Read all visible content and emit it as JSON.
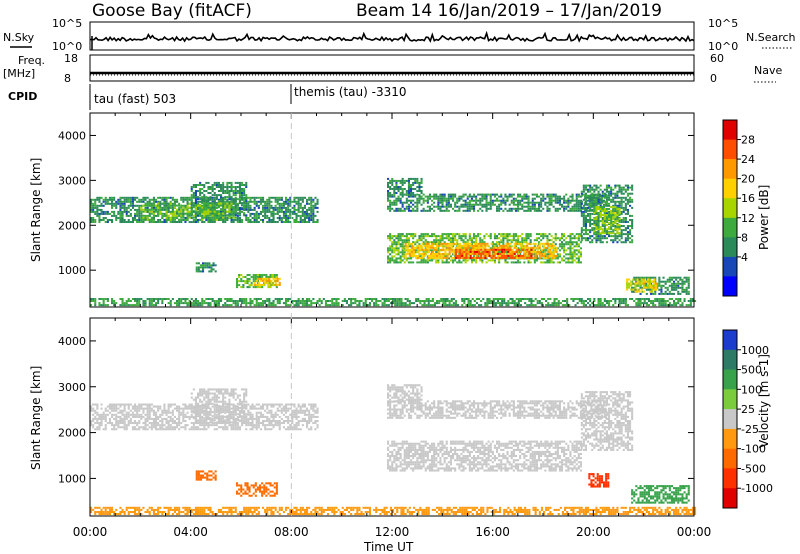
{
  "header": {
    "title_left": "Goose Bay (fitACF)",
    "title_right": "Beam 14  16/Jan/2019 – 17/Jan/2019"
  },
  "panels": {
    "noise": {
      "left_label": "N.Sky",
      "right_label": "N.Search",
      "left_ticks": [
        "10^5",
        "10^0"
      ],
      "right_ticks": [
        "10^5",
        "10^0"
      ]
    },
    "freq": {
      "left_label": "Freq.",
      "left_unit": "[MHz]",
      "right_label": "Nave",
      "left_ticks": [
        "18",
        "8"
      ],
      "right_ticks": [
        "60",
        "0"
      ]
    },
    "cpid": {
      "label": "CPID",
      "modes": [
        "tau (fast) 503",
        "themis (tau) -3310"
      ],
      "switch_time": "08:00"
    }
  },
  "colorbars": {
    "power": {
      "title": "Power [dB]",
      "ticks": [
        "28",
        "24",
        "20",
        "16",
        "12",
        "8",
        "4"
      ],
      "colors": [
        "#e00000",
        "#ff4d00",
        "#ff9900",
        "#ffd000",
        "#a8d400",
        "#3caa3c",
        "#2b8a5a",
        "#1848b8",
        "#0000ff"
      ]
    },
    "velocity": {
      "title": "Velocity [m s-1]",
      "ticks": [
        "1000",
        "500",
        "100",
        "25",
        "-25",
        "-100",
        "-500",
        "-1000"
      ],
      "colors": [
        "#1b3ccc",
        "#2d7a66",
        "#37a24a",
        "#7acc3c",
        "#c8c8c8",
        "#ff9a10",
        "#ff6a00",
        "#ff3000",
        "#e00000"
      ]
    }
  },
  "chart_data": [
    {
      "type": "heatmap",
      "panel": "power",
      "ylabel": "Slant Range [km]",
      "ylim": [
        180,
        4500
      ],
      "yticks": [
        "1000",
        "2000",
        "3000",
        "4000"
      ],
      "xlim_hours": [
        0,
        24
      ],
      "xticks": [
        "00:00",
        "04:00",
        "08:00",
        "12:00",
        "16:00",
        "20:00",
        "00:00"
      ],
      "regions": [
        {
          "t": [
            0.0,
            9.0
          ],
          "r": [
            2050,
            2600
          ],
          "value_db": 8
        },
        {
          "t": [
            4.0,
            6.2
          ],
          "r": [
            2200,
            2950
          ],
          "value_db": 8
        },
        {
          "t": [
            2.0,
            5.8
          ],
          "r": [
            2100,
            2500
          ],
          "value_db": 12
        },
        {
          "t": [
            5.8,
            7.4
          ],
          "r": [
            600,
            900
          ],
          "value_db": 12
        },
        {
          "t": [
            6.5,
            7.5
          ],
          "r": [
            650,
            800
          ],
          "value_db": 20
        },
        {
          "t": [
            4.2,
            5.0
          ],
          "r": [
            950,
            1150
          ],
          "value_db": 8
        },
        {
          "t": [
            11.8,
            19.5
          ],
          "r": [
            1150,
            1800
          ],
          "value_db": 12
        },
        {
          "t": [
            12.5,
            18.5
          ],
          "r": [
            1250,
            1600
          ],
          "value_db": 20
        },
        {
          "t": [
            14.5,
            17.5
          ],
          "r": [
            1250,
            1450
          ],
          "value_db": 26
        },
        {
          "t": [
            11.8,
            20.5
          ],
          "r": [
            2300,
            2700
          ],
          "value_db": 8
        },
        {
          "t": [
            11.8,
            13.2
          ],
          "r": [
            2650,
            3050
          ],
          "value_db": 8
        },
        {
          "t": [
            19.5,
            21.5
          ],
          "r": [
            1600,
            2900
          ],
          "value_db": 8
        },
        {
          "t": [
            20.0,
            21.0
          ],
          "r": [
            1800,
            2400
          ],
          "value_db": 14
        },
        {
          "t": [
            21.5,
            23.8
          ],
          "r": [
            450,
            850
          ],
          "value_db": 8
        },
        {
          "t": [
            21.3,
            22.5
          ],
          "r": [
            500,
            800
          ],
          "value_db": 18
        },
        {
          "t": [
            0.0,
            24.0
          ],
          "r": [
            200,
            380
          ],
          "value_db": 10
        }
      ]
    },
    {
      "type": "heatmap",
      "panel": "velocity",
      "ylabel": "Slant Range [km]",
      "xlabel": "Time UT",
      "ylim": [
        180,
        4500
      ],
      "yticks": [
        "1000",
        "2000",
        "3000",
        "4000"
      ],
      "xlim_hours": [
        0,
        24
      ],
      "xticks": [
        "00:00",
        "04:00",
        "08:00",
        "12:00",
        "16:00",
        "20:00",
        "00:00"
      ],
      "regions": [
        {
          "t": [
            0.0,
            9.0
          ],
          "r": [
            2050,
            2600
          ],
          "value_ms": 0
        },
        {
          "t": [
            4.0,
            6.2
          ],
          "r": [
            2200,
            2950
          ],
          "value_ms": 0
        },
        {
          "t": [
            5.8,
            7.4
          ],
          "r": [
            600,
            900
          ],
          "value_ms": -300
        },
        {
          "t": [
            4.2,
            5.0
          ],
          "r": [
            950,
            1150
          ],
          "value_ms": -300
        },
        {
          "t": [
            11.8,
            19.5
          ],
          "r": [
            1150,
            1800
          ],
          "value_ms": 0
        },
        {
          "t": [
            11.8,
            20.5
          ],
          "r": [
            2300,
            2700
          ],
          "value_ms": 0
        },
        {
          "t": [
            11.8,
            13.2
          ],
          "r": [
            2650,
            3050
          ],
          "value_ms": 0
        },
        {
          "t": [
            19.5,
            21.5
          ],
          "r": [
            1600,
            2900
          ],
          "value_ms": 0
        },
        {
          "t": [
            19.8,
            20.6
          ],
          "r": [
            800,
            1100
          ],
          "value_ms": -600
        },
        {
          "t": [
            21.5,
            23.8
          ],
          "r": [
            450,
            850
          ],
          "value_ms": 150
        },
        {
          "t": [
            0.0,
            24.0
          ],
          "r": [
            200,
            380
          ],
          "value_ms": -60
        }
      ]
    }
  ]
}
